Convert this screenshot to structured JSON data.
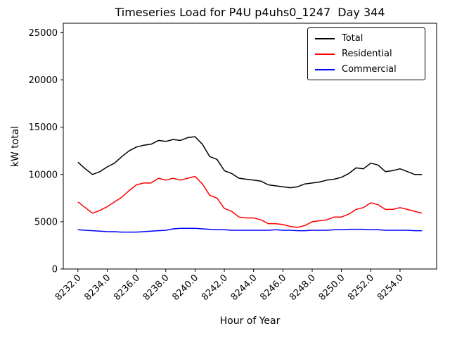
{
  "chart_data": {
    "type": "line",
    "title": "Timeseries Load for P4U p4uhs0_1247  Day 344",
    "xlabel": "Hour of Year",
    "ylabel": "kW total",
    "xlim": [
      8231.0,
      8256.5
    ],
    "ylim": [
      0,
      26000
    ],
    "grid": false,
    "legend_position": "upper right",
    "xticks": [
      8232,
      8234,
      8236,
      8238,
      8240,
      8242,
      8244,
      8246,
      8248,
      8250,
      8252,
      8254
    ],
    "xtick_labels": [
      "8232.0",
      "8234.0",
      "8236.0",
      "8238.0",
      "8240.0",
      "8242.0",
      "8244.0",
      "8246.0",
      "8248.0",
      "8250.0",
      "8252.0",
      "8254.0"
    ],
    "yticks": [
      0,
      5000,
      10000,
      15000,
      20000,
      25000
    ],
    "ytick_labels": [
      "0",
      "5000",
      "10000",
      "15000",
      "20000",
      "25000"
    ],
    "x": [
      8232,
      8232.5,
      8233,
      8233.5,
      8234,
      8234.5,
      8235,
      8235.5,
      8236,
      8236.5,
      8237,
      8237.5,
      8238,
      8238.5,
      8239,
      8239.5,
      8240,
      8240.5,
      8241,
      8241.5,
      8242,
      8242.5,
      8243,
      8243.5,
      8244,
      8244.5,
      8245,
      8245.5,
      8246,
      8246.5,
      8247,
      8247.5,
      8248,
      8248.5,
      8249,
      8249.5,
      8250,
      8250.5,
      8251,
      8251.5,
      8252,
      8252.5,
      8253,
      8253.5,
      8254,
      8254.5,
      8255,
      8255.5
    ],
    "series": [
      {
        "name": "Total",
        "color": "#000000",
        "values": [
          11300,
          10600,
          10000,
          10300,
          10800,
          11200,
          11900,
          12500,
          12900,
          13100,
          13200,
          13600,
          13500,
          13700,
          13600,
          13900,
          14000,
          13200,
          11900,
          11600,
          10400,
          10100,
          9600,
          9500,
          9400,
          9300,
          8900,
          8800,
          8700,
          8600,
          8700,
          9000,
          9100,
          9200,
          9400,
          9500,
          9700,
          10100,
          10700,
          10600,
          11200,
          11000,
          10300,
          10400,
          10600,
          10300,
          10000,
          10000
        ]
      },
      {
        "name": "Residential",
        "color": "#ff0000",
        "values": [
          7100,
          6500,
          5900,
          6200,
          6600,
          7100,
          7600,
          8300,
          8900,
          9100,
          9100,
          9600,
          9400,
          9600,
          9400,
          9600,
          9800,
          9000,
          7800,
          7500,
          6400,
          6100,
          5500,
          5400,
          5400,
          5200,
          4800,
          4800,
          4700,
          4500,
          4400,
          4600,
          5000,
          5100,
          5200,
          5500,
          5500,
          5800,
          6300,
          6500,
          7000,
          6800,
          6300,
          6300,
          6500,
          6300,
          6100,
          5900
        ]
      },
      {
        "name": "Commercial",
        "color": "#0000ff",
        "values": [
          4150,
          4100,
          4050,
          4000,
          3950,
          3950,
          3900,
          3900,
          3900,
          3950,
          4000,
          4050,
          4100,
          4250,
          4300,
          4300,
          4300,
          4250,
          4200,
          4150,
          4150,
          4100,
          4100,
          4100,
          4100,
          4100,
          4100,
          4150,
          4100,
          4100,
          4050,
          4050,
          4100,
          4100,
          4100,
          4150,
          4150,
          4200,
          4200,
          4200,
          4150,
          4150,
          4100,
          4100,
          4100,
          4100,
          4050,
          4050
        ]
      }
    ]
  }
}
